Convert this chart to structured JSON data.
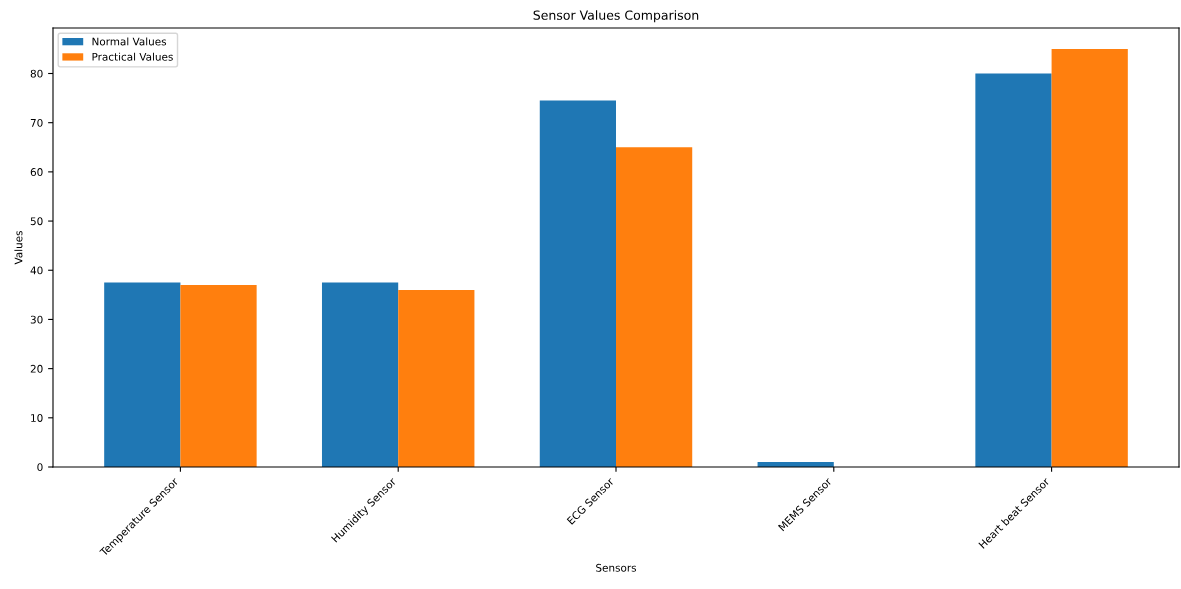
{
  "chart_data": {
    "type": "bar",
    "title": "Sensor Values Comparison",
    "xlabel": "Sensors",
    "ylabel": "Values",
    "categories": [
      "Temperature Sensor",
      "Humidity Sensor",
      "ECG Sensor",
      "MEMS Sensor",
      "Heart beat Sensor"
    ],
    "series": [
      {
        "name": "Normal Values",
        "color": "#1f77b4",
        "values": [
          37.5,
          37.5,
          74.5,
          1,
          80
        ]
      },
      {
        "name": "Practical Values",
        "color": "#ff7f0e",
        "values": [
          37,
          36,
          65,
          0,
          85
        ]
      }
    ],
    "ylim": [
      0,
      89.25
    ],
    "yticks": [
      0,
      10,
      20,
      30,
      40,
      50,
      60,
      70,
      80
    ],
    "legend": "top left",
    "grid": false
  }
}
